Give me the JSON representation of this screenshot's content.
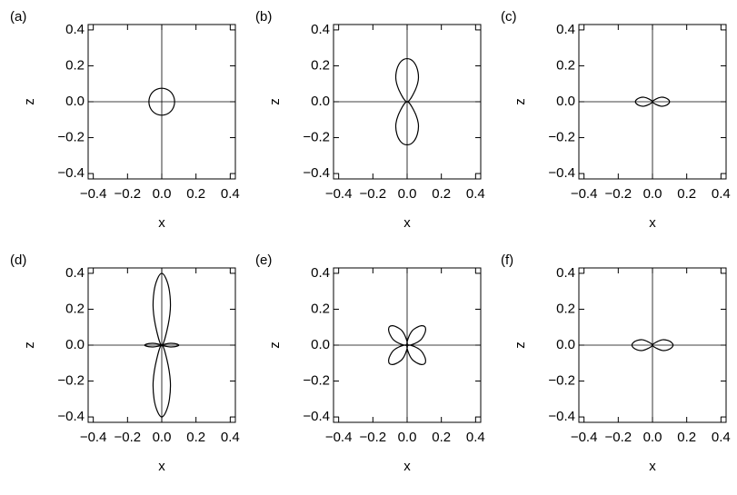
{
  "chart_data": [
    {
      "type": "line",
      "label": "(a)",
      "x_label": "x",
      "y_label": "z",
      "color": "#000000",
      "xlim": [
        -0.43,
        0.43
      ],
      "ylim": [
        -0.43,
        0.43
      ],
      "xticks": [
        {
          "value": -0.4,
          "label": "−0.4"
        },
        {
          "value": -0.2,
          "label": "−0.2"
        },
        {
          "value": 0,
          "label": "0.0"
        },
        0.2,
        0.4
      ],
      "yticks": [
        {
          "value": -0.4,
          "label": "−0.4"
        },
        {
          "value": -0.2,
          "label": "−0.2"
        },
        {
          "value": 0,
          "label": "0.0"
        },
        0.2,
        0.4
      ],
      "series": [
        {
          "x": [
            0.075,
            0.065,
            0.038,
            0,
            -0.038,
            -0.065,
            -0.075,
            -0.065,
            -0.038,
            0,
            0.038,
            0.065
          ],
          "values": [
            0,
            0.038,
            0.065,
            0.075,
            0.065,
            0.038,
            0,
            -0.038,
            -0.065,
            -0.075,
            -0.065,
            -0.038
          ]
        }
      ]
    },
    {
      "type": "line",
      "label": "(b)",
      "x_label": "x",
      "y_label": "z",
      "color": "#000000",
      "xlim": [
        -0.43,
        0.43
      ],
      "ylim": [
        -0.43,
        0.43
      ],
      "xticks": [
        {
          "value": -0.4,
          "label": "−0.4"
        },
        {
          "value": -0.2,
          "label": "−0.2"
        },
        {
          "value": 0,
          "label": "0.0"
        },
        0.2,
        0.4
      ],
      "yticks": [
        {
          "value": -0.4,
          "label": "−0.4"
        },
        {
          "value": -0.2,
          "label": "−0.2"
        },
        {
          "value": 0,
          "label": "0.0"
        },
        0.2,
        0.4
      ],
      "series": [
        {
          "x": [
            0,
            0.04,
            0.065,
            0.06,
            0.035,
            0,
            -0.035,
            -0.06,
            -0.065,
            -0.04
          ],
          "values": [
            0,
            0.05,
            0.12,
            0.18,
            0.225,
            0.24,
            0.225,
            0.18,
            0.12,
            0.05
          ]
        },
        {
          "x": [
            0,
            0.04,
            0.065,
            0.06,
            0.035,
            0,
            -0.035,
            -0.06,
            -0.065,
            -0.04
          ],
          "values": [
            0,
            -0.05,
            -0.12,
            -0.18,
            -0.225,
            -0.24,
            -0.225,
            -0.18,
            -0.12,
            -0.05
          ]
        }
      ]
    },
    {
      "type": "line",
      "label": "(c)",
      "x_label": "x",
      "y_label": "z",
      "color": "#000000",
      "xlim": [
        -0.43,
        0.43
      ],
      "ylim": [
        -0.43,
        0.43
      ],
      "xticks": [
        {
          "value": -0.4,
          "label": "−0.4"
        },
        {
          "value": -0.2,
          "label": "−0.2"
        },
        {
          "value": 0,
          "label": "0.0"
        },
        0.2,
        0.4
      ],
      "yticks": [
        {
          "value": -0.4,
          "label": "−0.4"
        },
        {
          "value": -0.2,
          "label": "−0.2"
        },
        {
          "value": 0,
          "label": "0.0"
        },
        0.2,
        0.4
      ],
      "series": [
        {
          "x": [
            0,
            0.02,
            0.05,
            0.075,
            0.093,
            0.1,
            0.093,
            0.075,
            0.05,
            0.02
          ],
          "values": [
            0,
            0.015,
            0.025,
            0.022,
            0.012,
            0,
            -0.012,
            -0.022,
            -0.025,
            -0.015
          ]
        },
        {
          "x": [
            0,
            -0.02,
            -0.05,
            -0.075,
            -0.093,
            -0.1,
            -0.093,
            -0.075,
            -0.05,
            -0.02
          ],
          "values": [
            0,
            0.015,
            0.025,
            0.022,
            0.012,
            0,
            -0.012,
            -0.022,
            -0.025,
            -0.015
          ]
        }
      ]
    },
    {
      "type": "line",
      "label": "(d)",
      "x_label": "x",
      "y_label": "z",
      "color": "#000000",
      "xlim": [
        -0.43,
        0.43
      ],
      "ylim": [
        -0.43,
        0.43
      ],
      "xticks": [
        {
          "value": -0.4,
          "label": "−0.4"
        },
        {
          "value": -0.2,
          "label": "−0.2"
        },
        {
          "value": 0,
          "label": "0.0"
        },
        0.2,
        0.4
      ],
      "yticks": [
        {
          "value": -0.4,
          "label": "−0.4"
        },
        {
          "value": -0.2,
          "label": "−0.2"
        },
        {
          "value": 0,
          "label": "0.0"
        },
        0.2,
        0.4
      ],
      "series": [
        {
          "x": [
            0,
            0.03,
            0.05,
            0.045,
            0.025,
            0,
            -0.025,
            -0.045,
            -0.05,
            -0.03
          ],
          "values": [
            0,
            0.08,
            0.2,
            0.3,
            0.37,
            0.4,
            0.37,
            0.3,
            0.2,
            0.08
          ]
        },
        {
          "x": [
            0,
            0.03,
            0.05,
            0.045,
            0.025,
            0,
            -0.025,
            -0.045,
            -0.05,
            -0.03
          ],
          "values": [
            0,
            -0.08,
            -0.2,
            -0.3,
            -0.37,
            -0.4,
            -0.37,
            -0.3,
            -0.2,
            -0.08
          ]
        },
        {
          "x": [
            0,
            0.02,
            0.05,
            0.075,
            0.093,
            0.1,
            0.093,
            0.075,
            0.05,
            0.02
          ],
          "values": [
            0,
            0.006,
            0.01,
            0.009,
            0.005,
            0,
            -0.005,
            -0.009,
            -0.01,
            -0.006
          ]
        },
        {
          "x": [
            0,
            -0.02,
            -0.05,
            -0.075,
            -0.093,
            -0.1,
            -0.093,
            -0.075,
            -0.05,
            -0.02
          ],
          "values": [
            0,
            0.006,
            0.01,
            0.009,
            0.005,
            0,
            -0.005,
            -0.009,
            -0.01,
            -0.006
          ]
        }
      ]
    },
    {
      "type": "line",
      "label": "(e)",
      "x_label": "x",
      "y_label": "z",
      "color": "#000000",
      "xlim": [
        -0.43,
        0.43
      ],
      "ylim": [
        -0.43,
        0.43
      ],
      "xticks": [
        {
          "value": -0.4,
          "label": "−0.4"
        },
        {
          "value": -0.2,
          "label": "−0.2"
        },
        {
          "value": 0,
          "label": "0.0"
        },
        0.2,
        0.4
      ],
      "yticks": [
        {
          "value": -0.4,
          "label": "−0.4"
        },
        {
          "value": -0.2,
          "label": "−0.2"
        },
        {
          "value": 0,
          "label": "0.0"
        },
        0.2,
        0.4
      ],
      "series": [
        {
          "x": [
            0,
            0.006,
            0.028,
            0.057,
            0.083,
            0.103,
            0.108,
            0.099,
            0.078,
            0.037
          ],
          "values": [
            0,
            0.037,
            0.078,
            0.099,
            0.108,
            0.103,
            0.083,
            0.057,
            0.028,
            0.006
          ]
        },
        {
          "x": [
            0,
            -0.006,
            -0.028,
            -0.057,
            -0.083,
            -0.103,
            -0.108,
            -0.099,
            -0.078,
            -0.037
          ],
          "values": [
            0,
            0.037,
            0.078,
            0.099,
            0.108,
            0.103,
            0.083,
            0.057,
            0.028,
            0.006
          ]
        },
        {
          "x": [
            0,
            0.006,
            0.028,
            0.057,
            0.083,
            0.103,
            0.108,
            0.099,
            0.078,
            0.037
          ],
          "values": [
            0,
            -0.037,
            -0.078,
            -0.099,
            -0.108,
            -0.103,
            -0.083,
            -0.057,
            -0.028,
            -0.006
          ]
        },
        {
          "x": [
            0,
            -0.006,
            -0.028,
            -0.057,
            -0.083,
            -0.103,
            -0.108,
            -0.099,
            -0.078,
            -0.037
          ],
          "values": [
            0,
            -0.037,
            -0.078,
            -0.099,
            -0.108,
            -0.103,
            -0.083,
            -0.057,
            -0.028,
            -0.006
          ]
        }
      ]
    },
    {
      "type": "line",
      "label": "(f)",
      "x_label": "x",
      "y_label": "z",
      "color": "#000000",
      "xlim": [
        -0.43,
        0.43
      ],
      "ylim": [
        -0.43,
        0.43
      ],
      "xticks": [
        {
          "value": -0.4,
          "label": "−0.4"
        },
        {
          "value": -0.2,
          "label": "−0.2"
        },
        {
          "value": 0,
          "label": "0.0"
        },
        0.2,
        0.4
      ],
      "yticks": [
        {
          "value": -0.4,
          "label": "−0.4"
        },
        {
          "value": -0.2,
          "label": "−0.2"
        },
        {
          "value": 0,
          "label": "0.0"
        },
        0.2,
        0.4
      ],
      "series": [
        {
          "x": [
            0,
            0.025,
            0.06,
            0.09,
            0.112,
            0.12,
            0.112,
            0.09,
            0.06,
            0.025
          ],
          "values": [
            0,
            0.018,
            0.03,
            0.026,
            0.014,
            0,
            -0.014,
            -0.026,
            -0.03,
            -0.018
          ]
        },
        {
          "x": [
            0,
            -0.025,
            -0.06,
            -0.09,
            -0.112,
            -0.12,
            -0.112,
            -0.09,
            -0.06,
            -0.025
          ],
          "values": [
            0,
            0.018,
            0.03,
            0.026,
            0.014,
            0,
            -0.014,
            -0.026,
            -0.03,
            -0.018
          ]
        }
      ]
    }
  ]
}
